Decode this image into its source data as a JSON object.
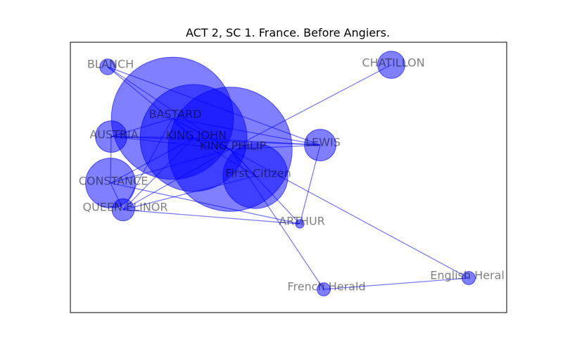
{
  "title": "ACT 2, SC 1. France. Before Angiers.",
  "style": {
    "node_color": "#0000ff",
    "edge_color": "#0000ff",
    "label_color": "#808080",
    "frame_color": "#000000"
  },
  "chart_data": {
    "type": "network",
    "title": "ACT 2, SC 1. France. Before Angiers.",
    "nodes": [
      {
        "id": "BLANCH",
        "label": "BLANCH",
        "weight": 1
      },
      {
        "id": "CHATILLON",
        "label": "CHATILLON",
        "weight": 3
      },
      {
        "id": "BASTARD",
        "label": "BASTARD",
        "weight": 60
      },
      {
        "id": "AUSTRIA",
        "label": "AUSTRIA",
        "weight": 4
      },
      {
        "id": "KING JOHN",
        "label": "KING JOHN",
        "weight": 46
      },
      {
        "id": "KING PHILIP",
        "label": "KING PHILIP",
        "weight": 62
      },
      {
        "id": "LEWIS",
        "label": "LEWIS",
        "weight": 4
      },
      {
        "id": "First Citizen",
        "label": "First Citizen",
        "weight": 17
      },
      {
        "id": "CONSTANCE",
        "label": "CONSTANCE",
        "weight": 10
      },
      {
        "id": "QUEEN ELINOR",
        "label": "QUEEN ELINOR",
        "weight": 2
      },
      {
        "id": "ARTHUR",
        "label": "ARTHUR",
        "weight": 0.3
      },
      {
        "id": "French Herald",
        "label": "French Herald",
        "weight": 0.7
      },
      {
        "id": "English Herald",
        "label": "English Heral",
        "weight": 0.7
      }
    ],
    "edges": [
      [
        "BLANCH",
        "KING JOHN"
      ],
      [
        "BLANCH",
        "LEWIS"
      ],
      [
        "BLANCH",
        "KING PHILIP"
      ],
      [
        "CHATILLON",
        "KING PHILIP"
      ],
      [
        "BASTARD",
        "AUSTRIA"
      ],
      [
        "BASTARD",
        "KING JOHN"
      ],
      [
        "BASTARD",
        "KING PHILIP"
      ],
      [
        "BASTARD",
        "LEWIS"
      ],
      [
        "BASTARD",
        "QUEEN ELINOR"
      ],
      [
        "BASTARD",
        "English Herald"
      ],
      [
        "AUSTRIA",
        "KING JOHN"
      ],
      [
        "AUSTRIA",
        "KING PHILIP"
      ],
      [
        "AUSTRIA",
        "LEWIS"
      ],
      [
        "AUSTRIA",
        "CONSTANCE"
      ],
      [
        "KING JOHN",
        "KING PHILIP"
      ],
      [
        "KING JOHN",
        "LEWIS"
      ],
      [
        "KING JOHN",
        "First Citizen"
      ],
      [
        "KING JOHN",
        "CONSTANCE"
      ],
      [
        "KING JOHN",
        "QUEEN ELINOR"
      ],
      [
        "KING PHILIP",
        "LEWIS"
      ],
      [
        "KING PHILIP",
        "First Citizen"
      ],
      [
        "KING PHILIP",
        "CONSTANCE"
      ],
      [
        "KING PHILIP",
        "QUEEN ELINOR"
      ],
      [
        "KING PHILIP",
        "ARTHUR"
      ],
      [
        "KING PHILIP",
        "French Herald"
      ],
      [
        "First Citizen",
        "QUEEN ELINOR"
      ],
      [
        "LEWIS",
        "ARTHUR"
      ],
      [
        "CONSTANCE",
        "QUEEN ELINOR"
      ],
      [
        "CONSTANCE",
        "ARTHUR"
      ],
      [
        "QUEEN ELINOR",
        "ARTHUR"
      ],
      [
        "French Herald",
        "English Herald"
      ]
    ]
  }
}
